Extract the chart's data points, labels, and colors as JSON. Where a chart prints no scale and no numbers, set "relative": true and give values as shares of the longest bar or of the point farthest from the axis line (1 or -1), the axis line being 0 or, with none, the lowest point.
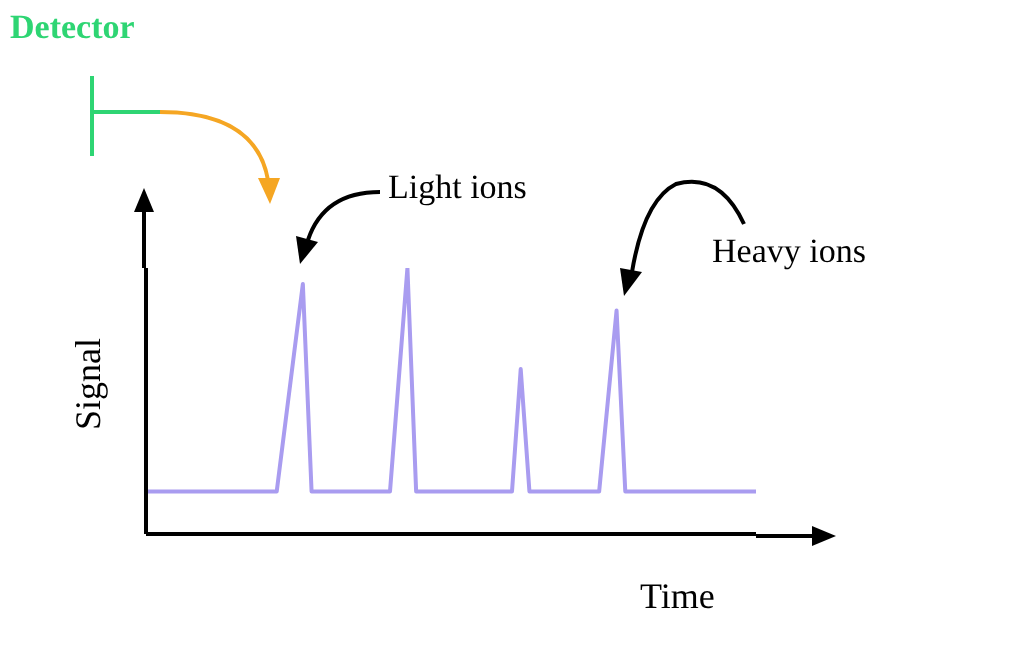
{
  "chart_data": {
    "type": "line",
    "relative": true,
    "xlabel": "Time",
    "ylabel": "Signal",
    "legend": false,
    "grid": false,
    "marker": "none",
    "annotations": [
      "Detector",
      "Light ions",
      "Heavy ions"
    ],
    "categories": [
      null,
      null,
      null,
      null,
      null,
      null,
      null,
      null,
      null,
      null,
      null,
      null,
      null,
      null,
      null,
      null,
      null,
      null,
      null,
      null,
      null,
      null,
      null,
      null,
      null,
      null,
      null,
      null,
      null,
      null,
      null,
      null,
      null,
      null,
      null,
      null,
      null,
      null,
      null,
      null,
      null,
      null,
      null,
      null,
      null,
      null,
      null,
      null,
      null,
      null,
      null,
      null,
      null,
      null,
      null,
      null,
      null,
      null,
      null,
      null,
      null,
      null,
      null,
      null,
      null,
      null,
      null,
      null,
      null,
      null,
      null
    ],
    "series": [
      {
        "color": "#a99cf0",
        "values": [
          0.16,
          0.16,
          0.16,
          0.16,
          0.16,
          0.16,
          0.16,
          0.16,
          0.16,
          0.16,
          0.16,
          0.16,
          0.16,
          0.16,
          0.16,
          0.16,
          0.42,
          0.68,
          0.94,
          0.16,
          0.16,
          0.16,
          0.16,
          0.16,
          0.16,
          0.16,
          0.16,
          0.16,
          0.16,
          0.58,
          1,
          0.16,
          0.16,
          0.16,
          0.16,
          0.16,
          0.16,
          0.16,
          0.16,
          0.16,
          0.16,
          0.16,
          0.16,
          0.62,
          0.16,
          0.16,
          0.16,
          0.16,
          0.16,
          0.16,
          0.16,
          0.16,
          0.16,
          0.5,
          0.84,
          0.16,
          0.16,
          0.16,
          0.16,
          0.16,
          0.16,
          0.16,
          0.16,
          0.16,
          0.16,
          0.16,
          0.16,
          0.16,
          0.16,
          0.16,
          0.16
        ]
      }
    ]
  }
}
